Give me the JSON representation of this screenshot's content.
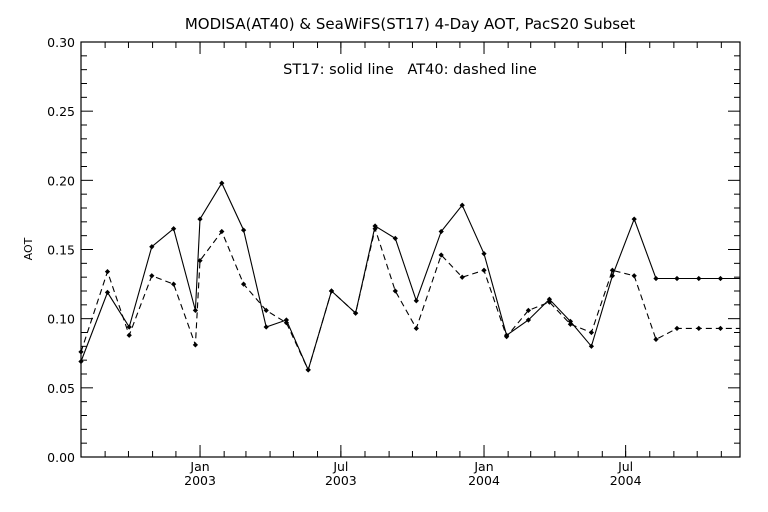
{
  "chart_data": {
    "type": "line",
    "title": "MODISA(AT40) & SeaWiFS(ST17) 4-Day AOT, PacS20 Subset",
    "annotation": "ST17: solid line   AT40: dashed line",
    "ylabel": "AOT",
    "xlabel": "",
    "ylim": [
      0.0,
      0.3
    ],
    "y_ticks": [
      "0.00",
      "0.05",
      "0.10",
      "0.15",
      "0.20",
      "0.25",
      "0.30"
    ],
    "xlim": [
      "2002-08-01",
      "2004-11-25"
    ],
    "x_ticks": [
      {
        "date": "2003-01-01",
        "label_top": "Jan",
        "label_bottom": "2003"
      },
      {
        "date": "2003-07-01",
        "label_top": "Jul",
        "label_bottom": "2003"
      },
      {
        "date": "2004-01-01",
        "label_top": "Jan",
        "label_bottom": "2004"
      },
      {
        "date": "2004-07-01",
        "label_top": "Jul",
        "label_bottom": "2004"
      }
    ],
    "grid": false,
    "series": [
      {
        "name": "ST17",
        "style": "solid",
        "x": [
          "2002-08-01",
          "2002-09-04",
          "2002-10-02",
          "2002-10-31",
          "2002-11-28",
          "2002-12-26",
          "2003-01-01",
          "2003-01-29",
          "2003-02-26",
          "2003-03-27",
          "2003-04-22",
          "2003-05-20",
          "2003-06-19",
          "2003-07-20",
          "2003-08-14",
          "2003-09-09",
          "2003-10-06",
          "2003-11-07",
          "2003-12-04",
          "2004-01-01",
          "2004-01-30",
          "2004-02-27",
          "2004-03-25",
          "2004-04-21",
          "2004-05-18",
          "2004-06-14",
          "2004-07-12",
          "2004-08-09",
          "2004-09-05",
          "2004-10-03",
          "2004-10-31",
          "2004-11-25"
        ],
        "values": [
          0.069,
          0.119,
          0.094,
          0.152,
          0.165,
          0.106,
          0.172,
          0.198,
          0.164,
          0.094,
          0.099,
          0.063,
          0.12,
          0.104,
          0.167,
          0.158,
          0.113,
          0.163,
          0.182,
          0.147,
          0.088,
          0.099,
          0.114,
          0.098,
          0.08,
          0.131,
          0.172,
          0.129,
          0.129,
          0.129,
          0.129,
          0.129
        ]
      },
      {
        "name": "AT40",
        "style": "dashed",
        "x": [
          "2002-08-01",
          "2002-09-04",
          "2002-10-02",
          "2002-10-31",
          "2002-11-28",
          "2002-12-26",
          "2003-01-01",
          "2003-01-29",
          "2003-02-26",
          "2003-03-27",
          "2003-04-22",
          "2003-05-20",
          "2003-06-19",
          "2003-07-20",
          "2003-08-14",
          "2003-09-09",
          "2003-10-06",
          "2003-11-07",
          "2003-12-04",
          "2004-01-01",
          "2004-01-30",
          "2004-02-27",
          "2004-03-25",
          "2004-04-21",
          "2004-05-18",
          "2004-06-14",
          "2004-07-12",
          "2004-08-09",
          "2004-09-05",
          "2004-10-03",
          "2004-10-31",
          "2004-11-25"
        ],
        "values": [
          0.076,
          0.134,
          0.088,
          0.131,
          0.125,
          0.081,
          0.142,
          0.163,
          0.125,
          0.106,
          0.097,
          0.063,
          0.12,
          0.104,
          0.165,
          0.12,
          0.093,
          0.146,
          0.13,
          0.135,
          0.087,
          0.106,
          0.112,
          0.096,
          0.09,
          0.135,
          0.131,
          0.085,
          0.093,
          0.093,
          0.093,
          0.093
        ]
      }
    ]
  }
}
